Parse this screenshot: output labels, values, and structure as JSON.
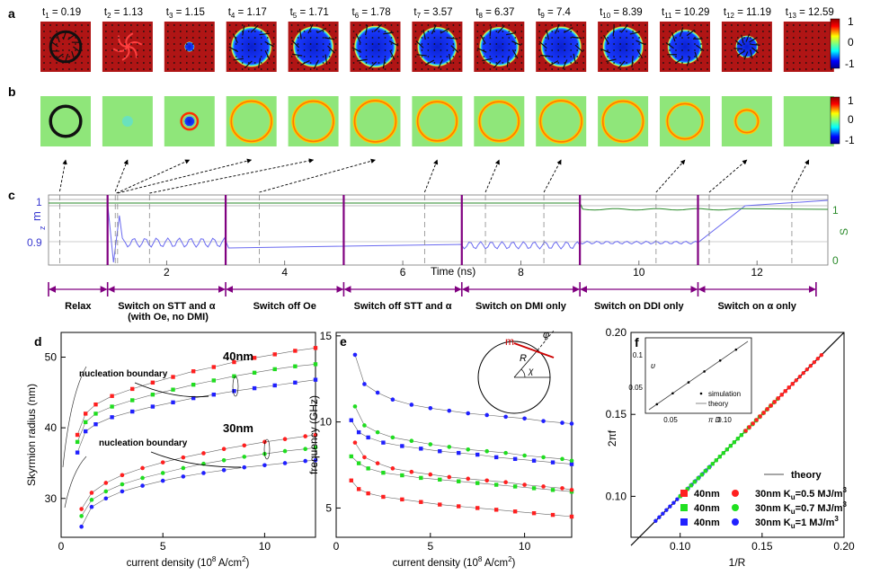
{
  "panel_letters": {
    "a": "a",
    "b": "b",
    "c": "c",
    "d": "d",
    "e": "e",
    "f": "f"
  },
  "times": {
    "prefix": "t",
    "subs": [
      "1",
      "2",
      "3",
      "4",
      "5",
      "6",
      "7",
      "8",
      "9",
      "10",
      "11",
      "12",
      "13"
    ],
    "values": [
      "= 0.19",
      "= 1.13",
      "= 1.15",
      "= 1.17",
      "= 1.71",
      "= 1.78",
      "= 3.57",
      "= 6.37",
      "= 7.4",
      "= 8.39",
      "= 10.29",
      "= 11.19",
      "= 12.59"
    ],
    "sizes": [
      0.55,
      0.0,
      0.2,
      0.82,
      0.82,
      0.85,
      0.8,
      0.8,
      0.82,
      0.82,
      0.7,
      0.45,
      0.0
    ],
    "ring_sizes": [
      0.6,
      0.0,
      0.22,
      0.8,
      0.8,
      0.82,
      0.78,
      0.78,
      0.82,
      0.8,
      0.7,
      0.45,
      0.0
    ]
  },
  "colorbar_a": {
    "top": "1",
    "mid": "0",
    "bottom": "-1"
  },
  "colorbar_b": {
    "top": "1",
    "mid": "0",
    "bottom": "-1"
  },
  "panel_c": {
    "ylabel_left": "m",
    "ylabel_left_sub": "z",
    "ylabel_right": "S",
    "yticks_left": [
      "1",
      "0.9"
    ],
    "yticks_right": [
      "1",
      "0"
    ],
    "xticks": [
      "2",
      "4",
      "6",
      "8",
      "10",
      "12"
    ],
    "xlabel": "Time (ns)",
    "phase_boundaries_ns": [
      0,
      1,
      3,
      5,
      7,
      9,
      11,
      13
    ],
    "phases": [
      "Relax",
      "Switch on STT and α",
      "Switch off Oe",
      "Switch off STT and α",
      "Switch on DMI only",
      "Switch on DDI only",
      "Switch on α only"
    ],
    "phase2_line2": "(with Oe, no DMI)"
  },
  "panel_d": {
    "ylabel": "Skyrmion radius (nm)",
    "xlabel": "current density (10",
    "xlabel_exp": "8",
    "xlabel_unit": " A/cm",
    "xlabel_exp2": "2",
    "xlabel_close": ")",
    "label_40": "40nm",
    "label_30": "30nm",
    "nucleation": "nucleation boundary",
    "yticks": [
      "30",
      "40",
      "50"
    ],
    "xticks": [
      "0",
      "5",
      "10"
    ]
  },
  "panel_e": {
    "ylabel": "frequency (GHz)",
    "xlabel": "current density (10",
    "xlabel_exp": "8",
    "xlabel_unit": " A/cm",
    "xlabel_exp2": "2",
    "xlabel_close": ")",
    "yticks": [
      "5",
      "10",
      "15"
    ],
    "xticks": [
      "0",
      "5",
      "10"
    ],
    "inset_labels": {
      "m": "m",
      "phi": "φ",
      "R": "R",
      "chi": "χ"
    }
  },
  "panel_f": {
    "ylabel": "2πf",
    "xlabel": "1/R",
    "yticks": [
      "0.10",
      "0.15",
      "0.20"
    ],
    "xticks": [
      "0.10",
      "0.15",
      "0.20"
    ],
    "inset_xticks": [
      "0.05",
      "0.10"
    ],
    "inset_yticks": [
      "0.05",
      "0.1"
    ],
    "inset_xlabel": "π D",
    "inset_ylabel": "υ",
    "inset_legend": [
      "simulation",
      "theory"
    ],
    "legend": {
      "theory": "theory",
      "rows": [
        {
          "left": "40nm",
          "right": "30nm K",
          "right_sub": "u",
          "right_val": "=0.5 MJ/m",
          "right_exp": "3",
          "color": "#ff2020"
        },
        {
          "left": "40nm",
          "right": "30nm K",
          "right_sub": "u",
          "right_val": "=0.7 MJ/m",
          "right_exp": "3",
          "color": "#20e020"
        },
        {
          "left": "40nm",
          "right": "30nm K",
          "right_sub": "u",
          "right_val": "=1 MJ/m",
          "right_exp": "3",
          "color": "#2020ff"
        }
      ]
    }
  },
  "colors": {
    "red": "#ff2020",
    "green": "#20dd20",
    "blue": "#2020ff",
    "purple": "#800080",
    "mz": "#6a6af0",
    "s": "#2a8a2a"
  },
  "chart_data": [
    {
      "type": "scatter",
      "title": "d",
      "xlabel": "current density (10^8 A/cm^2)",
      "ylabel": "Skyrmion radius (nm)",
      "xlim": [
        0,
        12.5
      ],
      "ylim": [
        25,
        53
      ],
      "series": [
        {
          "name": "40nm Ku=0.5",
          "color": "#ff2020",
          "marker": "square",
          "x": [
            0.8,
            1.2,
            1.7,
            2.5,
            3.5,
            4.5,
            5.5,
            6.5,
            7.5,
            8.5,
            9.5,
            10.5,
            11.5,
            12.5
          ],
          "y": [
            39,
            42,
            43.3,
            44.5,
            45.5,
            46.4,
            47.2,
            48,
            48.6,
            49.3,
            49.9,
            50.4,
            50.9,
            51.3
          ]
        },
        {
          "name": "40nm Ku=0.7",
          "color": "#20dd20",
          "marker": "square",
          "x": [
            0.8,
            1.2,
            1.7,
            2.5,
            3.5,
            4.5,
            5.5,
            6.5,
            7.5,
            8.5,
            9.5,
            10.5,
            11.5,
            12.5
          ],
          "y": [
            38,
            40.8,
            42,
            43,
            43.9,
            44.7,
            45.4,
            46.1,
            46.7,
            47.3,
            47.8,
            48.3,
            48.7,
            49
          ]
        },
        {
          "name": "40nm Ku=1",
          "color": "#2020ff",
          "marker": "square",
          "x": [
            0.8,
            1.2,
            1.7,
            2.5,
            3.5,
            4.5,
            5.5,
            6.5,
            7.5,
            8.5,
            9.5,
            10.5,
            11.5,
            12.5
          ],
          "y": [
            36.5,
            39.5,
            40.5,
            41.5,
            42.3,
            43,
            43.6,
            44.2,
            44.7,
            45.2,
            45.6,
            46,
            46.4,
            46.8
          ]
        },
        {
          "name": "30nm Ku=0.5",
          "color": "#ff2020",
          "marker": "circle",
          "x": [
            1,
            1.5,
            2.2,
            3,
            4,
            5,
            6,
            7,
            8,
            9,
            10,
            11,
            12,
            12.5
          ],
          "y": [
            28.5,
            30.8,
            32.2,
            33.3,
            34.3,
            35.1,
            35.8,
            36.4,
            37,
            37.5,
            38,
            38.4,
            38.8,
            39
          ]
        },
        {
          "name": "30nm Ku=0.7",
          "color": "#20dd20",
          "marker": "circle",
          "x": [
            1,
            1.5,
            2.2,
            3,
            4,
            5,
            6,
            7,
            8,
            9,
            10,
            11,
            12,
            12.5
          ],
          "y": [
            27.5,
            29.8,
            31,
            32,
            32.9,
            33.6,
            34.3,
            34.9,
            35.4,
            35.9,
            36.3,
            36.7,
            37,
            37.2
          ]
        },
        {
          "name": "30nm Ku=1",
          "color": "#2020ff",
          "marker": "circle",
          "x": [
            1,
            1.5,
            2.2,
            3,
            4,
            5,
            6,
            7,
            8,
            9,
            10,
            11,
            12,
            12.5
          ],
          "y": [
            26,
            28.8,
            30,
            31,
            31.8,
            32.5,
            33.1,
            33.6,
            34,
            34.4,
            34.7,
            35,
            35.3,
            35.4
          ]
        }
      ]
    },
    {
      "type": "scatter",
      "title": "e",
      "xlabel": "current density (10^8 A/cm^2)",
      "ylabel": "frequency (GHz)",
      "xlim": [
        0,
        12.5
      ],
      "ylim": [
        3.3,
        15
      ],
      "series": [
        {
          "name": "40nm Ku=1",
          "color": "#2020ff",
          "marker": "square",
          "x": [
            0.8,
            1.2,
            1.7,
            2.5,
            3.5,
            4.5,
            5.5,
            6.5,
            7.5,
            8.5,
            9.5,
            10.5,
            11.5,
            12.5
          ],
          "y": [
            10.1,
            9.4,
            9.1,
            8.8,
            8.6,
            8.45,
            8.3,
            8.2,
            8.1,
            7.95,
            7.85,
            7.75,
            7.65,
            7.55
          ]
        },
        {
          "name": "40nm Ku=0.7",
          "color": "#20dd20",
          "marker": "square",
          "x": [
            0.8,
            1.2,
            1.7,
            2.5,
            3.5,
            4.5,
            5.5,
            6.5,
            7.5,
            8.5,
            9.5,
            10.5,
            11.5,
            12.5
          ],
          "y": [
            8,
            7.6,
            7.3,
            7.05,
            6.9,
            6.75,
            6.65,
            6.55,
            6.45,
            6.35,
            6.25,
            6.15,
            6.05,
            5.95
          ]
        },
        {
          "name": "40nm Ku=0.5",
          "color": "#ff2020",
          "marker": "square",
          "x": [
            0.8,
            1.2,
            1.7,
            2.5,
            3.5,
            4.5,
            5.5,
            6.5,
            7.5,
            8.5,
            9.5,
            10.5,
            11.5,
            12.5
          ],
          "y": [
            6.6,
            6.1,
            5.85,
            5.65,
            5.5,
            5.35,
            5.2,
            5.1,
            5,
            4.9,
            4.8,
            4.7,
            4.6,
            4.5
          ]
        },
        {
          "name": "30nm Ku=1",
          "color": "#2020ff",
          "marker": "circle",
          "x": [
            1,
            1.5,
            2.2,
            3,
            4,
            5,
            6,
            7,
            8,
            9,
            10,
            11,
            12,
            12.5
          ],
          "y": [
            13.9,
            12.2,
            11.7,
            11.3,
            11,
            10.8,
            10.65,
            10.5,
            10.4,
            10.3,
            10.2,
            10.05,
            9.95,
            9.9
          ]
        },
        {
          "name": "30nm Ku=0.7",
          "color": "#20dd20",
          "marker": "circle",
          "x": [
            1,
            1.5,
            2.2,
            3,
            4,
            5,
            6,
            7,
            8,
            9,
            10,
            11,
            12,
            12.5
          ],
          "y": [
            10.9,
            9.8,
            9.4,
            9.1,
            8.9,
            8.7,
            8.55,
            8.4,
            8.3,
            8.2,
            8.05,
            7.95,
            7.85,
            7.75
          ]
        },
        {
          "name": "30nm Ku=0.5",
          "color": "#ff2020",
          "marker": "circle",
          "x": [
            1,
            1.5,
            2.2,
            3,
            4,
            5,
            6,
            7,
            8,
            9,
            10,
            11,
            12,
            12.5
          ],
          "y": [
            8.8,
            7.95,
            7.6,
            7.3,
            7.1,
            6.95,
            6.8,
            6.7,
            6.6,
            6.5,
            6.35,
            6.25,
            6.15,
            6.05
          ]
        }
      ]
    },
    {
      "type": "scatter",
      "title": "f",
      "xlabel": "1/R",
      "ylabel": "2πf",
      "xlim": [
        0.07,
        0.2
      ],
      "ylim": [
        0.07,
        0.2
      ],
      "series": [
        {
          "name": "theory",
          "color": "#000000",
          "marker": "line",
          "x": [
            0.07,
            0.2
          ],
          "y": [
            0.07,
            0.2
          ]
        },
        {
          "name": "30nm Ku=1",
          "color": "#2020ff",
          "marker": "circle",
          "x": [
            0.085,
            0.09,
            0.095,
            0.1,
            0.105,
            0.11,
            0.115,
            0.12
          ],
          "y": [
            0.085,
            0.09,
            0.095,
            0.1,
            0.105,
            0.11,
            0.115,
            0.12
          ]
        },
        {
          "name": "30nm Ku=0.7",
          "color": "#20dd20",
          "marker": "circle",
          "x": [
            0.1,
            0.11,
            0.12,
            0.13,
            0.14,
            0.15,
            0.16
          ],
          "y": [
            0.1,
            0.11,
            0.12,
            0.13,
            0.14,
            0.15,
            0.16
          ]
        },
        {
          "name": "30nm Ku=0.5",
          "color": "#ff2020",
          "marker": "circle",
          "x": [
            0.14,
            0.15,
            0.16,
            0.17,
            0.18,
            0.188
          ],
          "y": [
            0.14,
            0.15,
            0.16,
            0.17,
            0.18,
            0.188
          ]
        },
        {
          "name": "40nm Ku=0.7",
          "color": "#20dd20",
          "marker": "square",
          "x": [
            0.1,
            0.11,
            0.12,
            0.13,
            0.14,
            0.15
          ],
          "y": [
            0.1,
            0.11,
            0.12,
            0.13,
            0.14,
            0.15
          ]
        },
        {
          "name": "40nm Ku=0.5",
          "color": "#ff2020",
          "marker": "square",
          "x": [
            0.14,
            0.15,
            0.16,
            0.17
          ],
          "y": [
            0.14,
            0.15,
            0.16,
            0.17
          ]
        }
      ]
    }
  ]
}
